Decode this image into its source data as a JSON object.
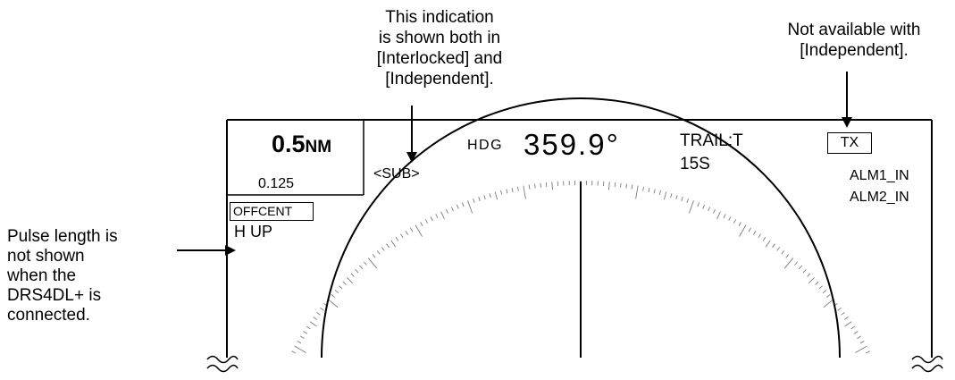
{
  "callouts": {
    "center_top": [
      "This indication",
      "is shown both in",
      "[Interlocked] and",
      "[Independent]."
    ],
    "right_top": [
      "Not available with",
      "[Independent]."
    ],
    "left": [
      "Pulse length is",
      "not shown",
      "when the",
      "DRS4DL+ is",
      "connected."
    ]
  },
  "display": {
    "range_value": "0.5",
    "range_unit": "NM",
    "range_ring": "0.125",
    "offcent": "OFFCENT",
    "orientation": "H UP",
    "sub": "<SUB>",
    "hdg_label": "HDG",
    "hdg_value": "359.9°",
    "trail_mode": "TRAIL:T",
    "trail_time": "15S",
    "tx": "TX",
    "alarm1": "ALM1_IN",
    "alarm2": "ALM2_IN"
  }
}
